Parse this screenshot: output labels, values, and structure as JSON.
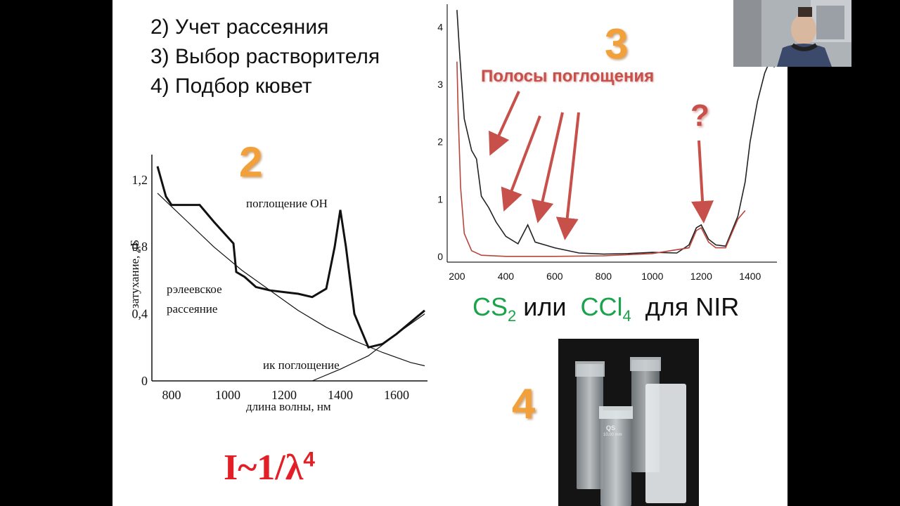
{
  "slide": {
    "list": [
      "2) Учет рассеяния",
      "3) Выбор растворителя",
      "4) Подбор кювет"
    ],
    "marker_2": "2",
    "marker_3": "3",
    "marker_4": "4",
    "question_mark": "?",
    "formula_prefix": "I~1/λ",
    "formula_exp": "4",
    "solvent_line": {
      "cs": "CS",
      "cs_sub": "2",
      "or": "или",
      "ccl": "CCl",
      "ccl_sub": "4",
      "for_nir": "для NIR"
    },
    "cuvette_labels": [
      "QS",
      "10.00 mm"
    ]
  },
  "chart_left": {
    "type": "line",
    "ylabel": "затухание, дБ",
    "xlabel": "длина волны, нм",
    "xticks": [
      "800",
      "1000",
      "1200",
      "1400",
      "1600"
    ],
    "yticks": [
      "0",
      "0,4",
      "0,8",
      "1,2"
    ],
    "annotations": {
      "oh": "поглощение OH",
      "rayleigh_1": "рэлеевское",
      "rayleigh_2": "рассеяние",
      "ir": "ик поглощение"
    }
  },
  "chart_right": {
    "type": "line",
    "xticks": [
      "200",
      "400",
      "600",
      "800",
      "1000",
      "1200",
      "1400"
    ],
    "yticks": [
      "0",
      "1",
      "2",
      "3",
      "4"
    ],
    "title_annotation": "Полосы поглощения",
    "colors": {
      "series_dark": "#222222",
      "series_red": "#b8453c",
      "arrow": "#c8504a",
      "accent_orange": "#f2a03a",
      "solvent_green": "#1aa34a"
    }
  },
  "chart_data": [
    {
      "type": "line",
      "xlabel": "длина волны, нм",
      "ylabel": "затухание, дБ",
      "xlim": [
        730,
        1710
      ],
      "ylim": [
        0,
        1.35
      ],
      "series": [
        {
          "x": [
            750,
            780,
            800,
            840,
            900,
            950,
            1020,
            1030,
            1060,
            1100,
            1150,
            1200,
            1250,
            1300,
            1350,
            1380,
            1400,
            1420,
            1450,
            1500,
            1550,
            1600,
            1700
          ],
          "y": [
            1.28,
            1.1,
            1.05,
            1.05,
            1.05,
            0.95,
            0.82,
            0.65,
            0.62,
            0.56,
            0.54,
            0.53,
            0.52,
            0.5,
            0.55,
            0.8,
            1.02,
            0.8,
            0.4,
            0.2,
            0.22,
            0.28,
            0.42
          ]
        },
        {
          "x": [
            750,
            850,
            950,
            1050,
            1150,
            1250,
            1350,
            1450,
            1550,
            1650,
            1700
          ],
          "y": [
            1.12,
            0.96,
            0.8,
            0.66,
            0.54,
            0.42,
            0.32,
            0.24,
            0.17,
            0.11,
            0.09
          ]
        },
        {
          "x": [
            1300,
            1400,
            1500,
            1600,
            1700
          ],
          "y": [
            0.0,
            0.07,
            0.15,
            0.28,
            0.4
          ]
        }
      ]
    },
    {
      "type": "line",
      "xlim": [
        160,
        1510
      ],
      "ylim": [
        -0.1,
        4.4
      ],
      "series": [
        {
          "x": [
            200,
            210,
            230,
            260,
            280,
            300,
            330,
            360,
            400,
            450,
            490,
            520,
            560,
            600,
            700,
            800,
            900,
            1000,
            1100,
            1150,
            1180,
            1200,
            1230,
            1260,
            1300,
            1350,
            1380,
            1400,
            1430,
            1460,
            1480,
            1500
          ],
          "y": [
            4.3,
            3.6,
            2.4,
            1.85,
            1.7,
            1.05,
            0.85,
            0.6,
            0.35,
            0.22,
            0.55,
            0.25,
            0.2,
            0.15,
            0.06,
            0.04,
            0.05,
            0.07,
            0.06,
            0.2,
            0.5,
            0.55,
            0.3,
            0.2,
            0.18,
            0.7,
            1.3,
            2.0,
            2.7,
            3.2,
            3.4,
            3.3
          ]
        },
        {
          "x": [
            200,
            205,
            215,
            230,
            260,
            300,
            400,
            600,
            800,
            1000,
            1150,
            1180,
            1200,
            1230,
            1260,
            1300,
            1350,
            1380
          ],
          "y": [
            3.4,
            2.5,
            1.2,
            0.4,
            0.1,
            0.02,
            0.0,
            0.0,
            0.01,
            0.05,
            0.15,
            0.45,
            0.5,
            0.25,
            0.15,
            0.15,
            0.65,
            0.8
          ]
        }
      ]
    }
  ]
}
